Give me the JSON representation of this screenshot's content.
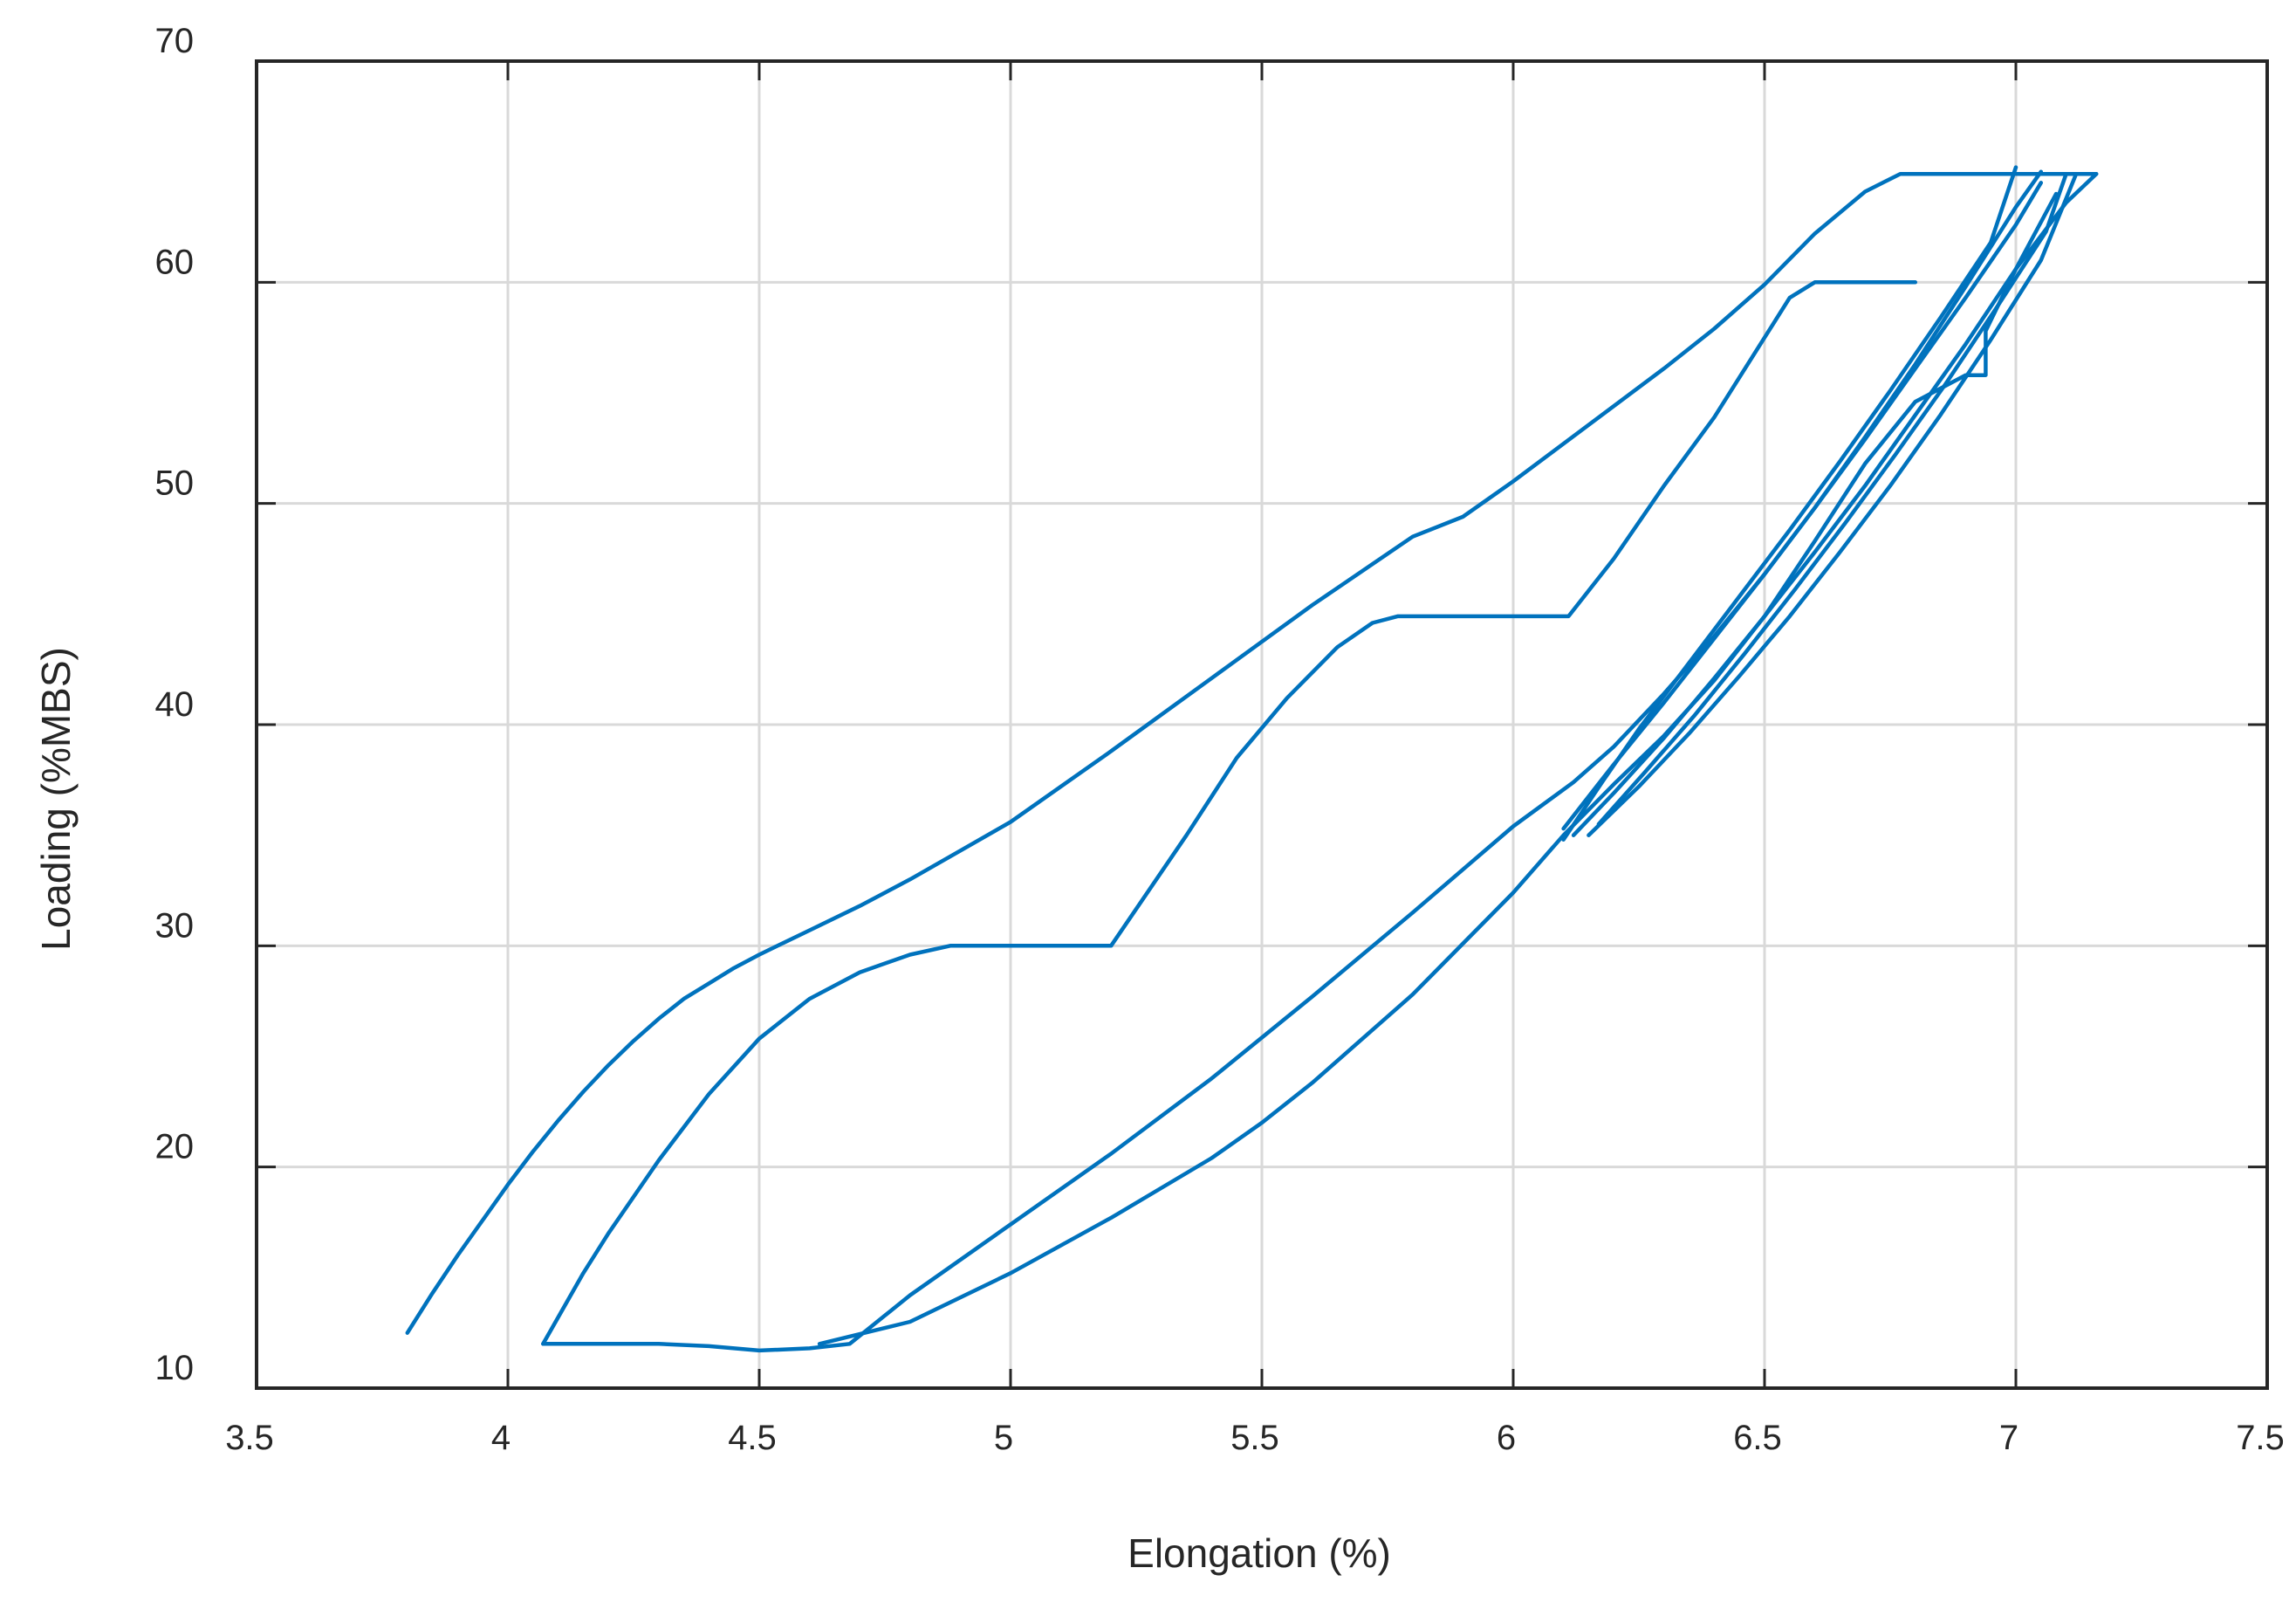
{
  "chart_data": {
    "type": "line",
    "title": "",
    "xlabel": "Elongation (%)",
    "ylabel": "Loading (%MBS)",
    "xlim": [
      3.5,
      7.5
    ],
    "ylim": [
      10,
      70
    ],
    "x_ticks": [
      3.5,
      4,
      4.5,
      5,
      5.5,
      6,
      6.5,
      7,
      7.5
    ],
    "x_tick_labels": [
      "3.5",
      "4",
      "4.5",
      "5",
      "5.5",
      "6",
      "6.5",
      "7",
      "7.5"
    ],
    "y_ticks": [
      10,
      20,
      30,
      40,
      50,
      60,
      70
    ],
    "y_tick_labels": [
      "10",
      "20",
      "30",
      "40",
      "50",
      "60",
      "70"
    ],
    "grid": true,
    "legend": "none",
    "colors": {
      "series": "#0072BD",
      "grid": "#d9d9d9",
      "axes": "#262626"
    },
    "series": [
      {
        "x": [
          3.8,
          3.85,
          3.9,
          3.95,
          4.0,
          4.05,
          4.1,
          4.15,
          4.2,
          4.25,
          4.3,
          4.35,
          4.4,
          4.45,
          4.5,
          4.6,
          4.7,
          4.8,
          4.9,
          5.0,
          5.2,
          5.4,
          5.6,
          5.8,
          5.9,
          5.95,
          6.0,
          6.2,
          6.3,
          6.4,
          6.5,
          6.6,
          6.7,
          6.77,
          6.9,
          7.05,
          7.16
        ],
        "y": [
          12.5,
          14.3,
          16.0,
          17.6,
          19.2,
          20.7,
          22.1,
          23.4,
          24.6,
          25.7,
          26.7,
          27.6,
          28.3,
          29.0,
          29.6,
          30.7,
          31.8,
          33.0,
          34.3,
          35.6,
          38.8,
          42.1,
          45.4,
          48.5,
          49.4,
          50.2,
          51.0,
          54.4,
          56.1,
          57.9,
          59.9,
          62.2,
          64.1,
          64.9,
          64.9,
          64.9,
          64.9
        ]
      },
      {
        "x": [
          4.07,
          4.1,
          4.15,
          4.2,
          4.3,
          4.4,
          4.5,
          4.6,
          4.7,
          4.8,
          4.88,
          5.0,
          5.2,
          5.35,
          5.45,
          5.55,
          5.65,
          5.72,
          5.77,
          5.9,
          6.11,
          6.2,
          6.3,
          6.4,
          6.45,
          6.5,
          6.55,
          6.6,
          6.8
        ],
        "y": [
          12.0,
          13.2,
          15.2,
          17.0,
          20.3,
          23.3,
          25.8,
          27.6,
          28.8,
          29.6,
          30.0,
          30.0,
          30.0,
          35.0,
          38.5,
          41.2,
          43.5,
          44.6,
          44.9,
          44.9,
          44.9,
          47.5,
          50.8,
          53.9,
          55.7,
          57.5,
          59.3,
          60.0,
          60.0
        ]
      },
      {
        "x": [
          4.07,
          4.3,
          4.4,
          4.5,
          4.6,
          4.68,
          4.8,
          5.0,
          5.2,
          5.4,
          5.6,
          5.8,
          6.0,
          6.12,
          6.2,
          6.3,
          6.4,
          6.5,
          6.6,
          6.7,
          6.8,
          6.9,
          7.0,
          7.05
        ],
        "y": [
          12.0,
          12.0,
          11.9,
          11.7,
          11.8,
          12.0,
          14.2,
          17.4,
          20.6,
          24.0,
          27.7,
          31.5,
          35.4,
          37.4,
          39.0,
          41.4,
          44.0,
          46.8,
          49.8,
          53.0,
          56.3,
          59.8,
          63.4,
          65.0
        ]
      },
      {
        "x": [
          4.62,
          4.8,
          5.0,
          5.2,
          5.4,
          5.5,
          5.6,
          5.8,
          6.0,
          6.1,
          6.2,
          6.3,
          6.4,
          6.5,
          6.6,
          6.7,
          6.8,
          6.9,
          6.94,
          6.94,
          7.0,
          7.1,
          7.16
        ],
        "y": [
          12.0,
          13.0,
          15.2,
          17.7,
          20.4,
          22.0,
          23.8,
          27.8,
          32.4,
          35.0,
          37.3,
          39.5,
          42.0,
          44.9,
          48.3,
          51.8,
          54.6,
          55.8,
          55.8,
          57.8,
          60.6,
          63.6,
          64.9
        ]
      },
      {
        "x": [
          6.1,
          6.2,
          6.3,
          6.4,
          6.5,
          6.6,
          6.7,
          6.8,
          6.9,
          7.0,
          7.05
        ],
        "y": [
          35.3,
          38.2,
          41.0,
          43.9,
          46.8,
          49.8,
          52.9,
          56.1,
          59.3,
          62.6,
          64.5
        ]
      },
      {
        "x": [
          6.15,
          6.25,
          6.35,
          6.45,
          6.55,
          6.65,
          6.75,
          6.85,
          6.95,
          7.05,
          7.12
        ],
        "y": [
          35.0,
          37.2,
          39.6,
          42.2,
          44.9,
          47.8,
          50.8,
          54.0,
          57.4,
          61.0,
          64.9
        ]
      },
      {
        "x": [
          6.1,
          6.18,
          6.25,
          6.35,
          6.45,
          6.55,
          6.65,
          6.75,
          6.85,
          6.95,
          7.0
        ],
        "y": [
          34.8,
          37.5,
          39.8,
          42.8,
          45.8,
          48.8,
          51.9,
          55.1,
          58.4,
          61.8,
          65.2
        ]
      },
      {
        "x": [
          6.12,
          6.2,
          6.3,
          6.4,
          6.5,
          6.6,
          6.7,
          6.8,
          6.9,
          7.0,
          7.08
        ],
        "y": [
          35.0,
          36.9,
          39.4,
          42.1,
          44.9,
          47.8,
          50.8,
          54.0,
          57.2,
          60.6,
          64.0
        ]
      },
      {
        "x": [
          6.17,
          6.26,
          6.36,
          6.46,
          6.56,
          6.66,
          6.76,
          6.86,
          6.96,
          7.06,
          7.1
        ],
        "y": [
          35.5,
          37.8,
          40.4,
          43.2,
          46.1,
          49.1,
          52.2,
          55.4,
          58.8,
          62.3,
          64.9
        ]
      }
    ]
  }
}
